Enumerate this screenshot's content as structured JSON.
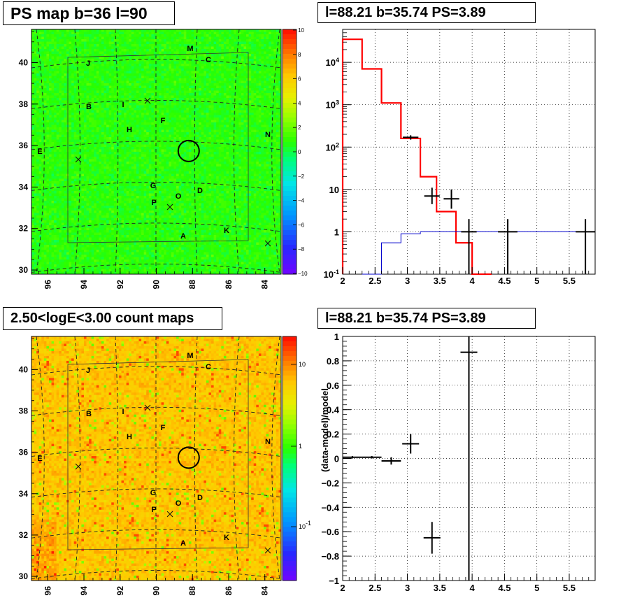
{
  "panels": {
    "top_left_title": "PS map b=36 l=90",
    "top_right_title": "l=88.21 b=35.74 PS=3.89",
    "bottom_left_title": "2.50<logE<3.00 count maps",
    "bottom_right_title": "l=88.21 b=35.74 PS=3.89"
  },
  "chart_data": [
    {
      "id": "ps-map",
      "type": "heatmap",
      "title": "PS map b=36 l=90",
      "x_ticks": [
        "96",
        "94",
        "92",
        "90",
        "88",
        "86",
        "84"
      ],
      "y_ticks": [
        "30",
        "32",
        "34",
        "36",
        "38",
        "40"
      ],
      "colorbar_ticks": [
        "10",
        "8",
        "6",
        "4",
        "2",
        "0",
        "−2",
        "−4",
        "−6",
        "−8",
        "−10"
      ],
      "zlim": [
        -10,
        10
      ],
      "dominant_value": 0,
      "source_labels": [
        "M",
        "C",
        "J",
        "B",
        "F",
        "H",
        "N",
        "E",
        "G",
        "D",
        "O",
        "P",
        "K",
        "A",
        "I"
      ],
      "circle_center": {
        "l": 88.21,
        "b": 35.74
      }
    },
    {
      "id": "spectrum",
      "type": "line",
      "title": "l=88.21 b=35.74 PS=3.89",
      "log_y": true,
      "xlim": [
        2,
        5.9
      ],
      "ylim": [
        0.1,
        60000
      ],
      "x_ticks": [
        "2",
        "2.5",
        "3",
        "3.5",
        "4",
        "4.5",
        "5",
        "5.5"
      ],
      "y_ticks": [
        "10^-1",
        "1",
        "10",
        "10^2",
        "10^3",
        "10^4"
      ],
      "series": [
        {
          "color": "#ff0000",
          "style": "step",
          "edges": [
            2.0,
            2.3,
            2.6,
            2.9,
            3.2,
            3.45,
            3.75,
            4.0,
            4.3
          ],
          "values": [
            35000,
            7000,
            1100,
            160,
            20,
            3,
            0.55,
            0.1
          ]
        },
        {
          "color": "#0000cc",
          "style": "step",
          "edges": [
            2.3,
            2.6,
            2.9,
            3.2,
            3.5,
            3.8,
            4.1,
            4.5,
            5.0,
            5.9
          ],
          "values": [
            0.1,
            0.55,
            0.9,
            1.0,
            1.0,
            1.0,
            1.0,
            1.0,
            1.0
          ]
        },
        {
          "color": "#000000",
          "style": "points",
          "x": [
            3.05,
            3.38,
            3.68,
            3.95,
            4.55,
            5.75
          ],
          "y": [
            170,
            7,
            6,
            1,
            1,
            1
          ],
          "xerr": [
            0.12,
            0.12,
            0.12,
            0.12,
            0.15,
            0.15
          ],
          "ylo": [
            150,
            4.5,
            3.5,
            0.1,
            0.1,
            0.1
          ],
          "yhi": [
            190,
            11,
            10,
            2,
            2,
            2
          ]
        }
      ]
    },
    {
      "id": "count-map",
      "type": "heatmap",
      "title": "2.50<logE<3.00 count maps",
      "x_ticks": [
        "96",
        "94",
        "92",
        "90",
        "88",
        "86",
        "84"
      ],
      "y_ticks": [
        "30",
        "32",
        "34",
        "36",
        "38",
        "40"
      ],
      "colorbar_ticks": [
        "10",
        "1",
        "10^-1"
      ],
      "zlim": [
        0.02,
        30
      ],
      "source_labels": [
        "M",
        "C",
        "J",
        "B",
        "F",
        "H",
        "N",
        "E",
        "G",
        "D",
        "O",
        "P",
        "K",
        "A",
        "I"
      ],
      "circle_center": {
        "l": 88.21,
        "b": 35.74
      }
    },
    {
      "id": "residuals",
      "type": "scatter",
      "title": "l=88.21 b=35.74 PS=3.89",
      "ylabel": "(data-model)/model",
      "xlim": [
        2,
        5.9
      ],
      "ylim": [
        -1,
        1
      ],
      "x_ticks": [
        "2",
        "2.5",
        "3",
        "3.5",
        "4",
        "4.5",
        "5",
        "5.5"
      ],
      "y_ticks": [
        "−1",
        "−0.8",
        "−0.6",
        "−0.4",
        "−0.2",
        "0",
        "0.2",
        "0.4",
        "0.6",
        "0.8",
        "1"
      ],
      "points": [
        {
          "x": 2.15,
          "y": 0.01,
          "xerr": 0.15,
          "yerr": 0.01
        },
        {
          "x": 2.45,
          "y": 0.01,
          "xerr": 0.15,
          "yerr": 0.01
        },
        {
          "x": 2.75,
          "y": -0.02,
          "xerr": 0.15,
          "yerr": 0.03
        },
        {
          "x": 3.05,
          "y": 0.12,
          "xerr": 0.13,
          "yerr": 0.08
        },
        {
          "x": 3.38,
          "y": -0.65,
          "xerr": 0.13,
          "yerr": 0.13
        },
        {
          "x": 3.95,
          "y": 0.87,
          "xerr": 0.13,
          "yerr": 1.9
        }
      ]
    }
  ]
}
